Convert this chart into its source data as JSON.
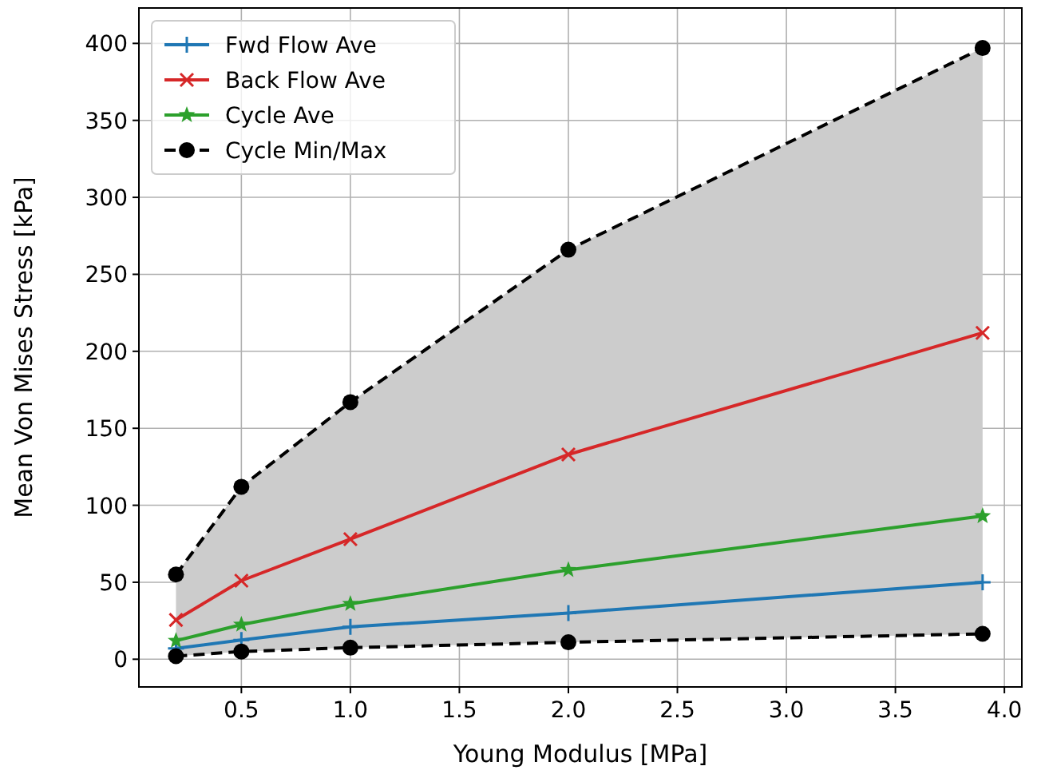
{
  "chart_data": {
    "type": "line",
    "xlabel": "Young Modulus [MPa]",
    "ylabel": "Mean Von Mises Stress [kPa]",
    "x": [
      0.2,
      0.5,
      1.0,
      2.0,
      3.9
    ],
    "xlim": [
      0.03,
      4.08
    ],
    "xticks": [
      0.5,
      {
        "value": 1,
        "label": "1.0"
      },
      1.5,
      {
        "value": 2,
        "label": "2.0"
      },
      2.5,
      {
        "value": 3,
        "label": "3.0"
      },
      3.5,
      {
        "value": 4,
        "label": "4.0"
      }
    ],
    "ylim": [
      -18,
      423
    ],
    "yticks": [
      0,
      50,
      100,
      150,
      200,
      250,
      300,
      350,
      400
    ],
    "grid": true,
    "legend": "top left",
    "line_style": "solid",
    "series": [
      {
        "name": "Fwd Flow Ave",
        "color": "#1f77b4",
        "marker": "plus",
        "values": [
          7,
          12.5,
          21,
          30,
          50
        ]
      },
      {
        "name": "Back Flow Ave",
        "color": "#d62728",
        "marker": "cross",
        "values": [
          25.5,
          51,
          78,
          133,
          212
        ]
      },
      {
        "name": "Cycle Ave",
        "color": "#2ca02c",
        "marker": "star",
        "values": [
          12,
          22.5,
          36,
          58,
          93
        ]
      },
      {
        "name": "Cycle Min/Max",
        "color": "#000000",
        "marker": "circle",
        "line_style": "dashed",
        "values": [
          55,
          112,
          167,
          266,
          397
        ],
        "lower": [
          2,
          5,
          7.5,
          11,
          16.5
        ],
        "upper": [
          55,
          112,
          167,
          266,
          397
        ]
      },
      {
        "color": "#000000",
        "marker": "circle",
        "line_style": "dashed",
        "values": [
          2,
          5,
          7.5,
          11,
          16.5
        ]
      }
    ]
  }
}
